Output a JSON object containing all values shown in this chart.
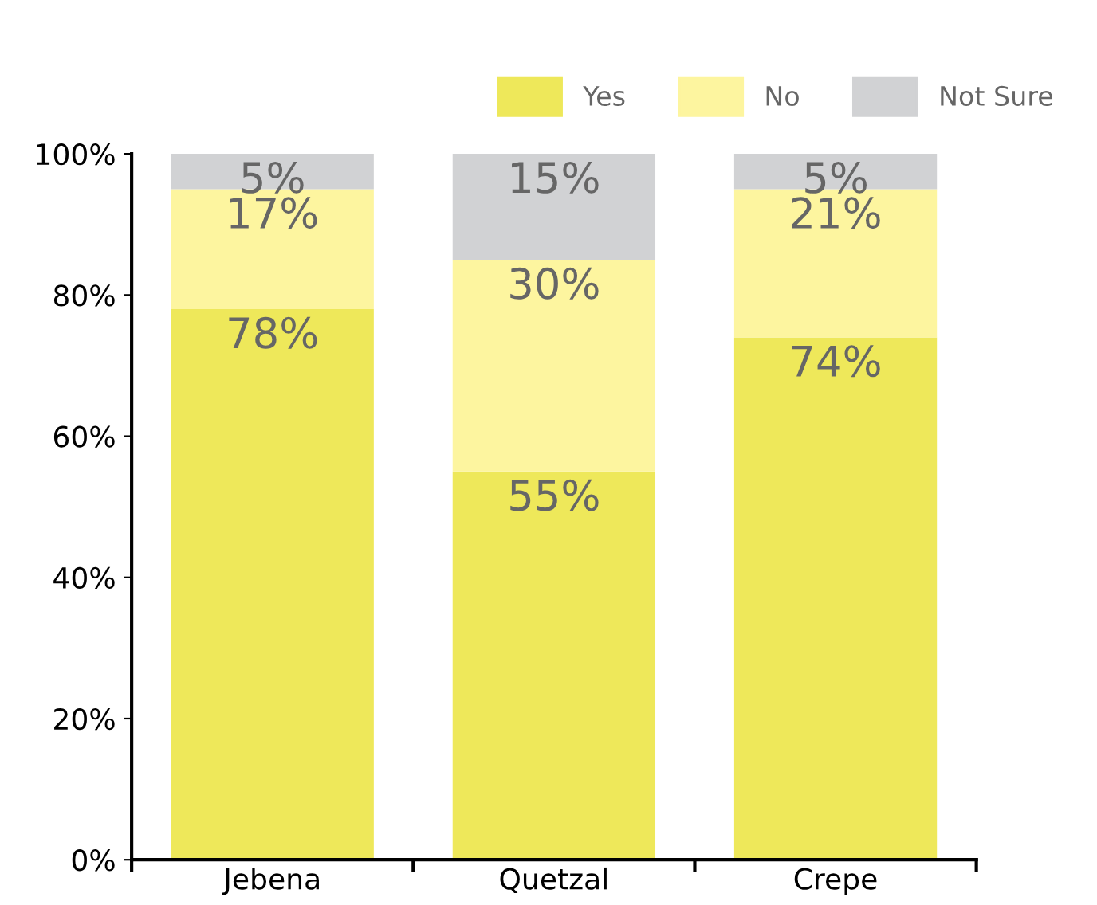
{
  "chart_data": {
    "type": "bar",
    "stacked": true,
    "categories": [
      "Jebena",
      "Quetzal",
      "Crepe"
    ],
    "series": [
      {
        "name": "Yes",
        "color": "#eee85a",
        "values": [
          78,
          55,
          74
        ],
        "value_labels": [
          "78%",
          "55%",
          "74%"
        ]
      },
      {
        "name": "No",
        "color": "#fdf59f",
        "values": [
          17,
          30,
          21
        ],
        "value_labels": [
          "17%",
          "30%",
          "21%"
        ]
      },
      {
        "name": "Not Sure",
        "color": "#d1d2d4",
        "values": [
          5,
          15,
          5
        ],
        "value_labels": [
          "5%",
          "15%",
          "5%"
        ]
      }
    ],
    "ylim": [
      0,
      100
    ],
    "yticks": [
      {
        "value": 0,
        "label": "0%"
      },
      {
        "value": 20,
        "label": "20%"
      },
      {
        "value": 40,
        "label": "40%"
      },
      {
        "value": 60,
        "label": "60%"
      },
      {
        "value": 80,
        "label": "80%"
      },
      {
        "value": 100,
        "label": "100%"
      }
    ],
    "grid": false,
    "legend": "top right"
  }
}
